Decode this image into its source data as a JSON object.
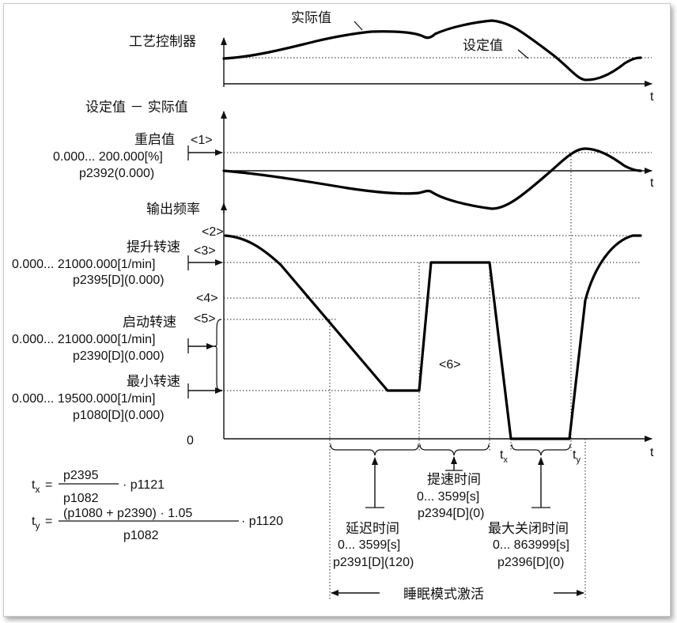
{
  "panel1": {
    "title": "工艺控制器",
    "actual_label": "实际值",
    "setpoint_label": "设定值",
    "t_label": "t"
  },
  "panel2": {
    "title": "设定值 － 实际值",
    "restart_label": "重启值",
    "restart_marker": "<1>",
    "restart_range": "0.000... 200.000[%]",
    "restart_param": "p2392(0.000)",
    "t_label": "t"
  },
  "panel3": {
    "title": "输出频率",
    "marker2": "<2>",
    "boost_label": "提升转速",
    "marker3": "<3>",
    "boost_range": "0.000... 21000.000[1/min]",
    "boost_param": "p2395[D](0.000)",
    "marker4": "<4>",
    "start_label": "启动转速",
    "marker5": "<5>",
    "start_range": "0.000... 21000.000[1/min]",
    "start_param": "p2390[D](0.000)",
    "min_label": "最小转速",
    "min_range": "0.000... 19500.000[1/min]",
    "min_param": "p1080[D](0.000)",
    "zero_label": "0",
    "marker6": "<6>",
    "t_label": "t",
    "tx_label": "t",
    "tx_sub": "x",
    "ty_label": "t",
    "ty_sub": "y"
  },
  "timing": {
    "boost_time_label": "提速时间",
    "boost_time_range": "0... 3599[s]",
    "boost_time_param": "p2394[D](0)",
    "delay_label": "延迟时间",
    "delay_range": "0... 3599[s]",
    "delay_param": "p2391[D](120)",
    "max_off_label": "最大关闭时间",
    "max_off_range": "0... 863999[s]",
    "max_off_param": "p2396[D](0)",
    "sleep_label": "睡眠模式激活"
  },
  "formulas": {
    "tx_lhs": "t",
    "tx_sub": "x",
    "eq": "=",
    "tx_num": "p2395",
    "tx_den": "p1082",
    "tx_tail": "· p1121",
    "ty_lhs": "t",
    "ty_sub": "y",
    "ty_num": "(p1080 + p2390) · 1.05",
    "ty_den": "p1082",
    "ty_tail": "· p1120"
  }
}
